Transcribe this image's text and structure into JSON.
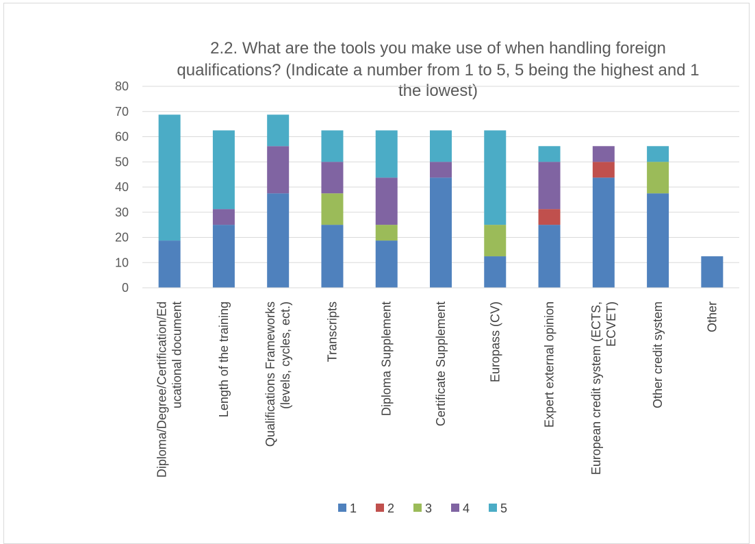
{
  "chart_data": {
    "type": "bar",
    "stacked": true,
    "title_lines": [
      "2.2. What are the tools you make use of when handling foreign",
      "qualifications?  (Indicate a number from 1 to 5, 5 being the highest and 1",
      "the lowest)"
    ],
    "xlabel": "",
    "ylabel": "",
    "ylim": [
      0,
      80
    ],
    "yticks": [
      "0",
      "10",
      "20",
      "30",
      "40",
      "50",
      "60",
      "70",
      "80"
    ],
    "grid": true,
    "legend_position": "bottom",
    "categories": [
      [
        "Diploma/Degree/Certification/Ed",
        "ucational document"
      ],
      [
        "Length of the training"
      ],
      [
        "Qualifications Frameworks",
        "(levels, cycles, ect.)"
      ],
      [
        "Transcripts"
      ],
      [
        "Diploma Supplement"
      ],
      [
        "Certificate Supplement"
      ],
      [
        "Europass (CV)"
      ],
      [
        "Expert external opinion"
      ],
      [
        "European credit system (ECTS,",
        "ECVET)"
      ],
      [
        "Other credit system"
      ],
      [
        "Other"
      ]
    ],
    "series": [
      {
        "name": "1",
        "color": "#4f81bd",
        "values": [
          18.75,
          25,
          37.5,
          25,
          18.75,
          43.75,
          12.5,
          25,
          43.75,
          37.5,
          12.5
        ]
      },
      {
        "name": "2",
        "color": "#c0504d",
        "values": [
          0,
          0,
          0,
          0,
          0,
          0,
          0,
          6.25,
          6.25,
          0,
          0
        ]
      },
      {
        "name": "3",
        "color": "#9bbb59",
        "values": [
          0,
          0,
          0,
          12.5,
          6.25,
          0,
          12.5,
          0,
          0,
          12.5,
          0
        ]
      },
      {
        "name": "4",
        "color": "#8064a2",
        "values": [
          0,
          6.25,
          18.75,
          12.5,
          18.75,
          6.25,
          0,
          18.75,
          6.25,
          0,
          0
        ]
      },
      {
        "name": "5",
        "color": "#4bacc6",
        "values": [
          50,
          31.25,
          12.5,
          12.5,
          18.75,
          12.5,
          37.5,
          6.25,
          0,
          6.25,
          0
        ]
      }
    ]
  }
}
